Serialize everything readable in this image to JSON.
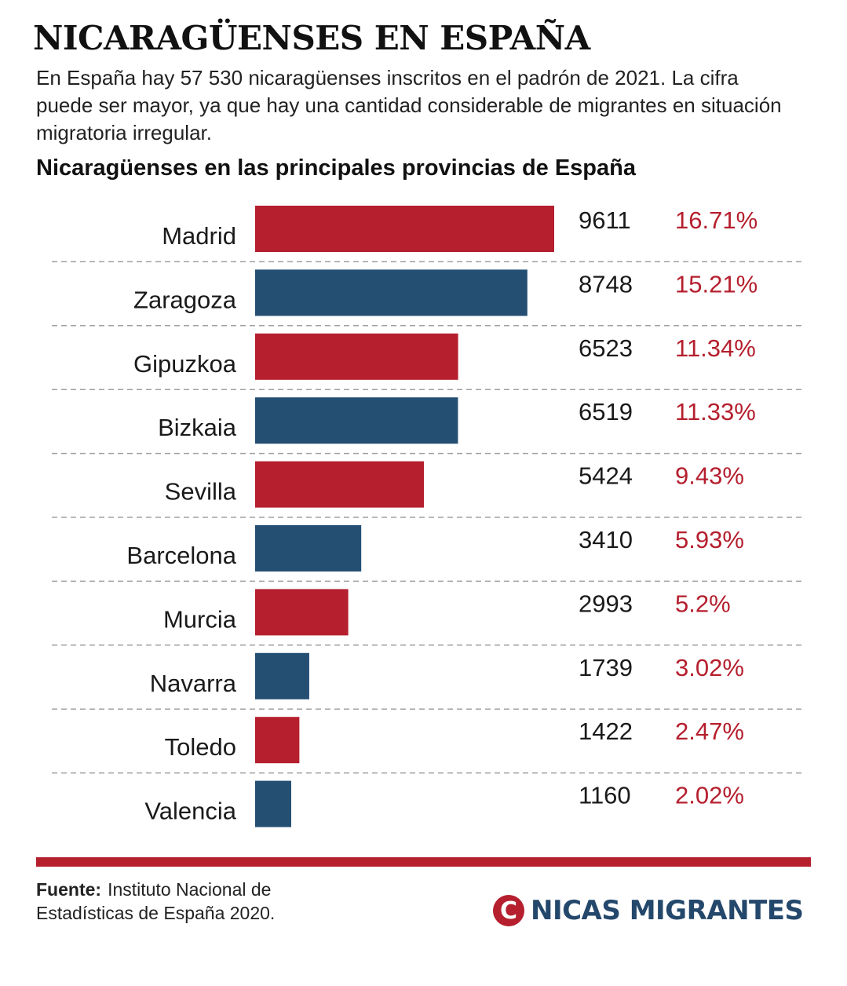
{
  "header": {
    "title": "NICARAGÜENSES EN ESPAÑA",
    "intro": "En España hay 57 530 nicaragüenses inscritos en el padrón de 2021. La cifra puede ser mayor, ya que hay una cantidad considerable de migrantes en situación migratoria irregular."
  },
  "colors": {
    "red": "#b51f2e",
    "blue": "#244f73",
    "separator": "#a0a0a0"
  },
  "chart_data": {
    "type": "bar",
    "orientation": "horizontal",
    "title": "Nicaragüenses en las principales provincias de España",
    "categories": [
      "Madrid",
      "Zaragoza",
      "Gipuzkoa",
      "Bizkaia",
      "Sevilla",
      "Barcelona",
      "Murcia",
      "Navarra",
      "Toledo",
      "Valencia"
    ],
    "values": [
      9611,
      8748,
      6523,
      6519,
      5424,
      3410,
      2993,
      1739,
      1422,
      1160
    ],
    "value_labels": [
      "9611",
      "8748",
      "6523",
      "6519",
      "5424",
      "3410",
      "2993",
      "1739",
      "1422",
      "1160"
    ],
    "percentages": [
      "16.71%",
      "15.21%",
      "11.34%",
      "11.33%",
      "9.43%",
      "5.93%",
      "5.2%",
      "3.02%",
      "2.47%",
      "2.02%"
    ],
    "bar_colors": [
      "red",
      "blue",
      "red",
      "blue",
      "red",
      "blue",
      "red",
      "blue",
      "red",
      "blue"
    ],
    "grid": false
  },
  "footer": {
    "source_label": "Fuente:",
    "source_text": "Instituto Nacional de Estadísticas de España 2020.",
    "brand_mark": "C",
    "brand_name": "NICAS MIGRANTES"
  }
}
